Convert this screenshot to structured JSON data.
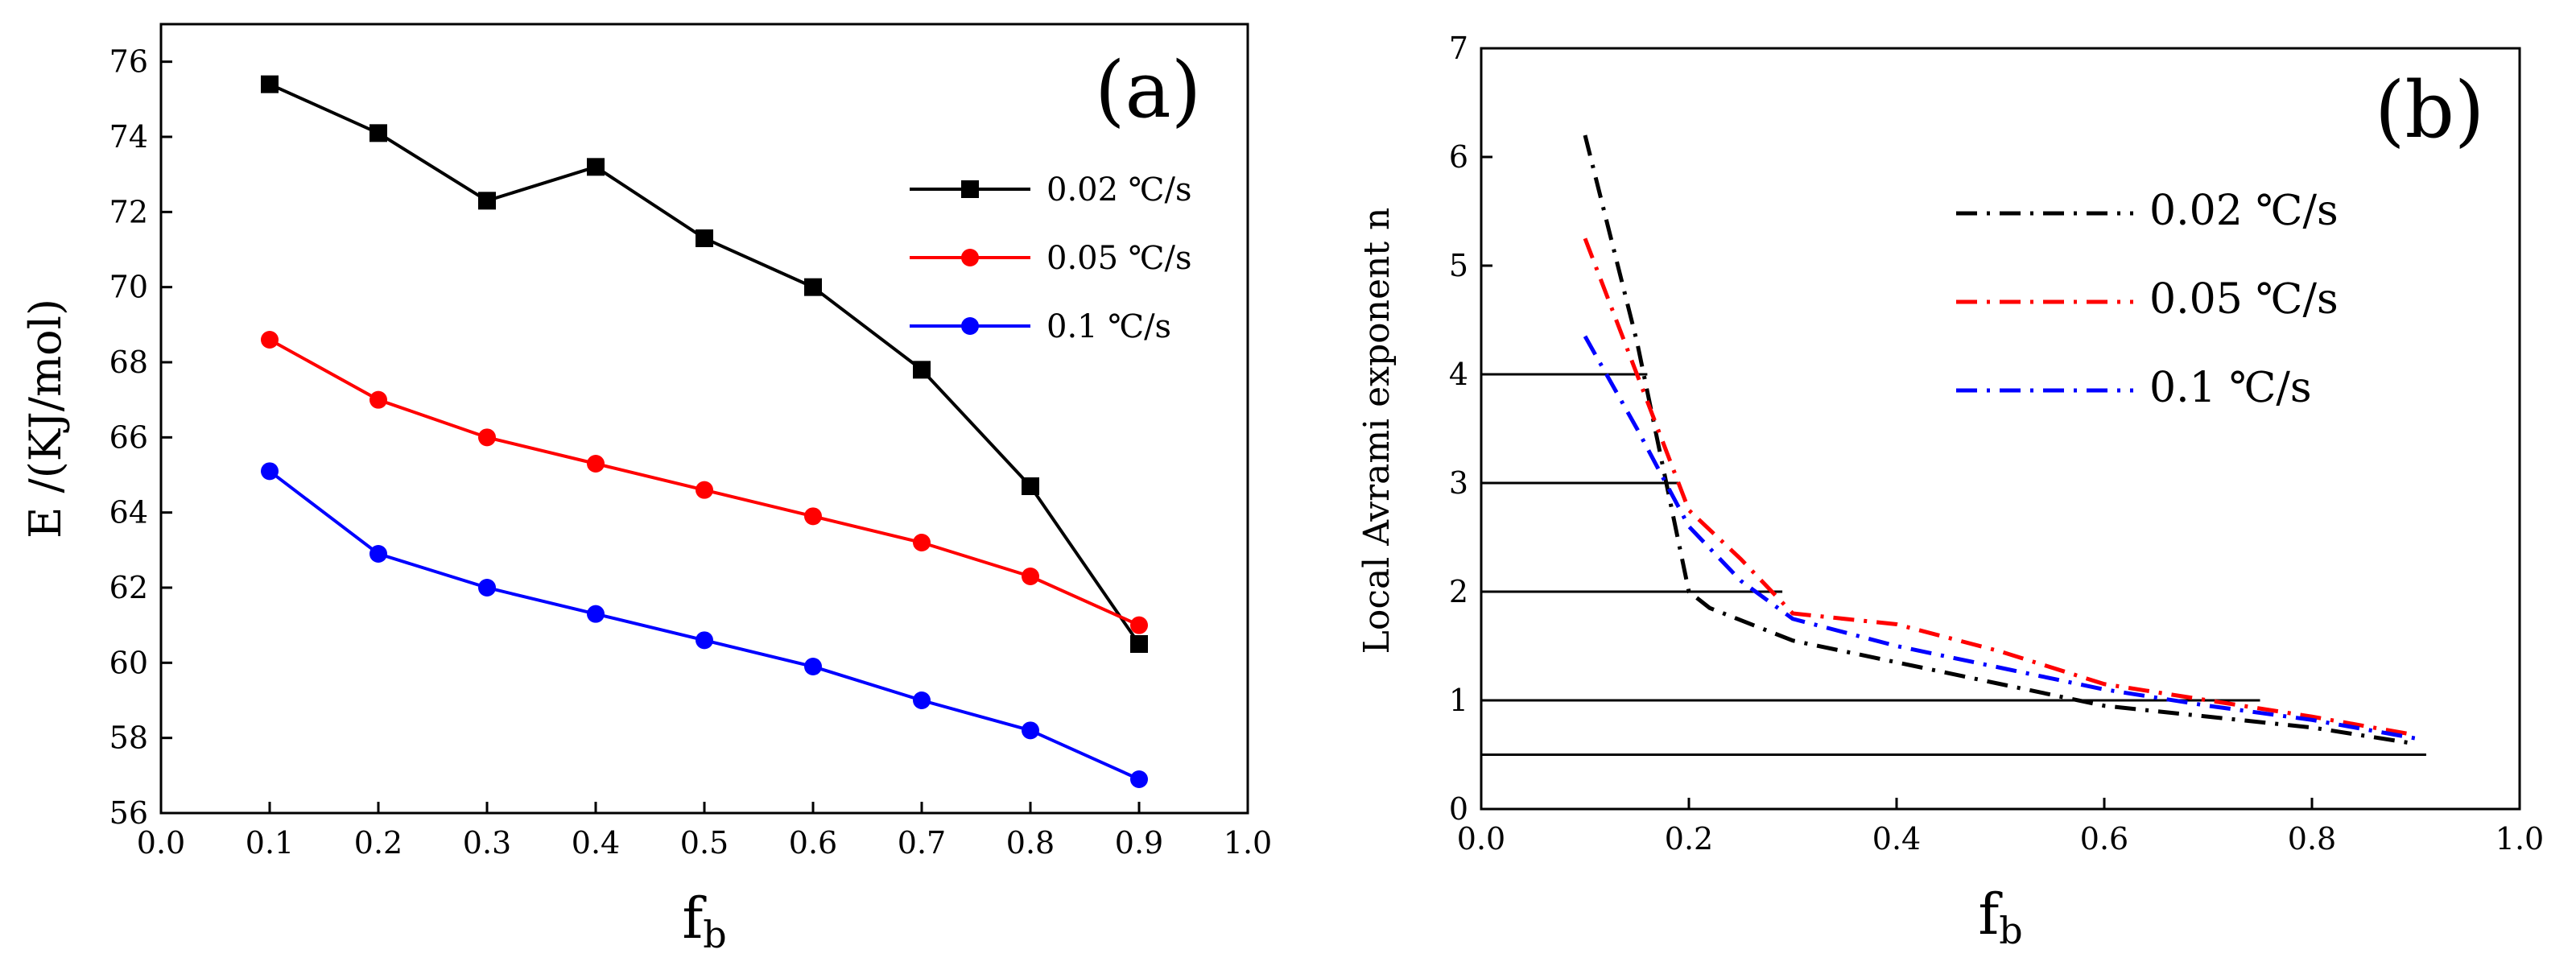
{
  "chart_data": [
    {
      "panel": "(a)",
      "type": "line",
      "xlabel_main": "f",
      "xlabel_sub": "b",
      "ylabel": "E /(KJ/mol)",
      "xlim": [
        0.0,
        1.0
      ],
      "ylim": [
        56,
        77
      ],
      "xticks": [
        "0.0",
        "0.1",
        "0.2",
        "0.3",
        "0.4",
        "0.5",
        "0.6",
        "0.7",
        "0.8",
        "0.9",
        "1.0"
      ],
      "yticks": [
        "56",
        "58",
        "60",
        "62",
        "64",
        "66",
        "68",
        "70",
        "72",
        "74",
        "76"
      ],
      "legend_position": "top-right",
      "series": [
        {
          "name": "0.02 ℃/s",
          "color": "#000000",
          "marker": "square",
          "x": [
            0.1,
            0.2,
            0.3,
            0.4,
            0.5,
            0.6,
            0.7,
            0.8,
            0.9
          ],
          "y": [
            75.4,
            74.1,
            72.3,
            73.2,
            71.3,
            70.0,
            67.8,
            64.7,
            60.5
          ]
        },
        {
          "name": "0.05 ℃/s",
          "color": "#ff0000",
          "marker": "circle",
          "x": [
            0.1,
            0.2,
            0.3,
            0.4,
            0.5,
            0.6,
            0.7,
            0.8,
            0.9
          ],
          "y": [
            68.6,
            67.0,
            66.0,
            65.3,
            64.6,
            63.9,
            63.2,
            62.3,
            61.0
          ]
        },
        {
          "name": "0.1  ℃/s",
          "color": "#0000ff",
          "marker": "circle",
          "x": [
            0.1,
            0.2,
            0.3,
            0.4,
            0.5,
            0.6,
            0.7,
            0.8,
            0.9
          ],
          "y": [
            65.1,
            62.9,
            62.0,
            61.3,
            60.6,
            59.9,
            59.0,
            58.2,
            56.9
          ]
        }
      ]
    },
    {
      "panel": "(b)",
      "type": "line",
      "xlabel_main": "f",
      "xlabel_sub": "b",
      "ylabel": "Local Avrami exponent n",
      "xlim": [
        0.0,
        1.0
      ],
      "ylim": [
        0,
        7
      ],
      "xticks": [
        "0.0",
        "0.2",
        "0.4",
        "0.6",
        "0.8",
        "1.0"
      ],
      "yticks": [
        "0",
        "1",
        "2",
        "3",
        "4",
        "5",
        "6",
        "7"
      ],
      "legend_position": "top-right",
      "series": [
        {
          "name": "0.02 ℃/s",
          "color": "#000000",
          "style": "dash-dot",
          "x": [
            0.1,
            0.15,
            0.2,
            0.22,
            0.3,
            0.4,
            0.5,
            0.6,
            0.7,
            0.8,
            0.9
          ],
          "y": [
            6.2,
            4.3,
            2.0,
            1.85,
            1.55,
            1.35,
            1.15,
            0.95,
            0.85,
            0.75,
            0.6
          ]
        },
        {
          "name": "0.05 ℃/s",
          "color": "#ff0000",
          "style": "dash-dot",
          "x": [
            0.1,
            0.15,
            0.2,
            0.25,
            0.3,
            0.4,
            0.5,
            0.6,
            0.7,
            0.8,
            0.9
          ],
          "y": [
            5.25,
            4.0,
            2.75,
            2.3,
            1.8,
            1.7,
            1.45,
            1.15,
            1.0,
            0.85,
            0.68
          ]
        },
        {
          "name": "0.1 ℃/s",
          "color": "#0000ff",
          "style": "dash-dot",
          "x": [
            0.1,
            0.15,
            0.2,
            0.25,
            0.3,
            0.4,
            0.5,
            0.6,
            0.7,
            0.8,
            0.9
          ],
          "y": [
            4.35,
            3.5,
            2.6,
            2.1,
            1.75,
            1.5,
            1.3,
            1.1,
            0.95,
            0.82,
            0.65
          ]
        }
      ],
      "reference_lines": [
        {
          "y": 4,
          "x_end": 0.16
        },
        {
          "y": 3,
          "x_end": 0.19
        },
        {
          "y": 2,
          "x_end": 0.29
        },
        {
          "y": 1,
          "x_end": 0.75
        },
        {
          "y": 0.5,
          "x_end": 0.91
        }
      ]
    }
  ]
}
